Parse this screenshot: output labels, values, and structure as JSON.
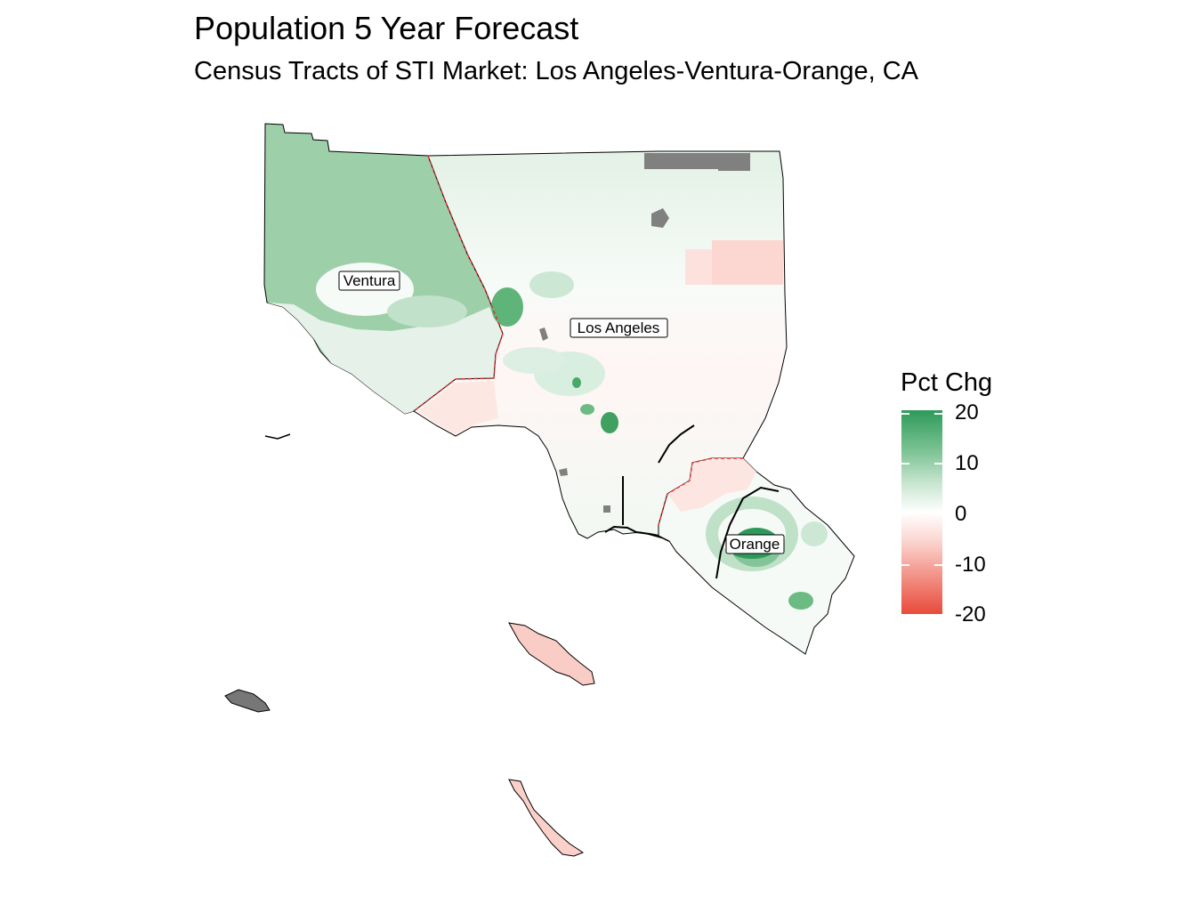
{
  "title": "Population 5 Year Forecast",
  "subtitle": "Census Tracts of STI Market: Los Angeles-Ventura-Orange, CA",
  "map": {
    "counties": [
      {
        "name": "Ventura",
        "label": "Ventura",
        "fill": "#9dcfa9"
      },
      {
        "name": "Los Angeles",
        "label": "Los Angeles",
        "fill": "#eef6f0"
      },
      {
        "name": "Orange",
        "label": "Orange",
        "fill": "#f6faf6"
      }
    ],
    "missing_color": "#808080",
    "boundary_color": "#e03030",
    "islands": {
      "catalina_fill": "#f9cdc6",
      "san_clemente_fill": "#fbd0c9",
      "san_nicolas_fill": "#777777"
    }
  },
  "legend": {
    "title": "Pct Chg",
    "ticks": [
      "20",
      "10",
      "0",
      "-10",
      "-20"
    ],
    "values": [
      20,
      10,
      0,
      -10,
      -20
    ],
    "colors": {
      "high": "#2e9a5a",
      "mid": "#ffffff",
      "low": "#e84a3a"
    }
  }
}
